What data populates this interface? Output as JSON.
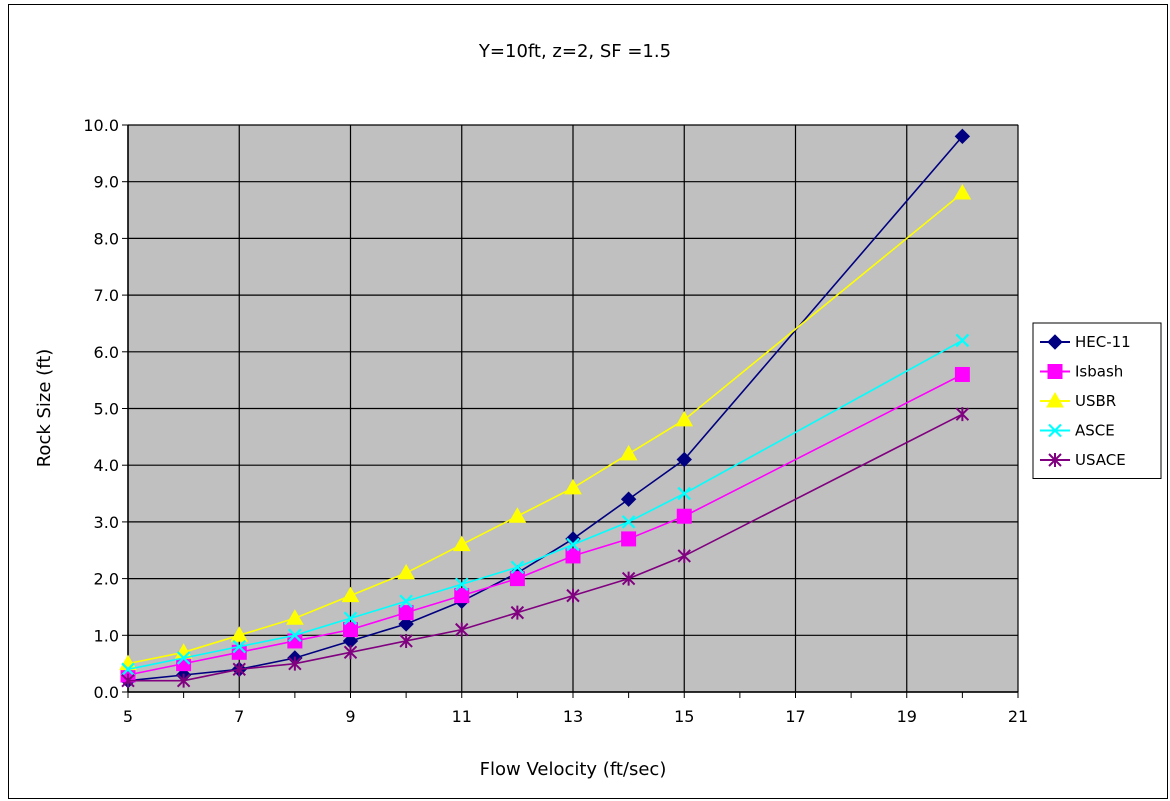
{
  "chart_data": {
    "type": "line",
    "title": "Y=10ft, z=2, SF =1.5",
    "xlabel": "Flow Velocity (ft/sec)",
    "ylabel": "Rock Size (ft)",
    "xlim": [
      5,
      21
    ],
    "ylim": [
      0,
      10
    ],
    "x_ticks": [
      "5",
      "7",
      "9",
      "11",
      "13",
      "15",
      "17",
      "19",
      "21"
    ],
    "y_ticks": [
      "0.0",
      "1.0",
      "2.0",
      "3.0",
      "4.0",
      "5.0",
      "6.0",
      "7.0",
      "8.0",
      "9.0",
      "10.0"
    ],
    "grid": true,
    "legend_position": "right",
    "plot_background": "#c0c0c0",
    "x": [
      5,
      6,
      7,
      8,
      9,
      10,
      11,
      12,
      13,
      14,
      15,
      20
    ],
    "series": [
      {
        "name": "HEC-11",
        "color": "#000080",
        "marker": "diamond",
        "values": [
          0.2,
          0.3,
          0.4,
          0.6,
          0.9,
          1.2,
          1.6,
          2.1,
          2.7,
          3.4,
          4.1,
          9.8
        ]
      },
      {
        "name": "Isbash",
        "color": "#ff00ff",
        "marker": "square",
        "values": [
          0.3,
          0.5,
          0.7,
          0.9,
          1.1,
          1.4,
          1.7,
          2.0,
          2.4,
          2.7,
          3.1,
          5.6
        ]
      },
      {
        "name": "USBR",
        "color": "#ffff00",
        "marker": "triangle",
        "values": [
          0.5,
          0.7,
          1.0,
          1.3,
          1.7,
          2.1,
          2.6,
          3.1,
          3.6,
          4.2,
          4.8,
          8.8
        ]
      },
      {
        "name": "ASCE",
        "color": "#00ffff",
        "marker": "x",
        "values": [
          0.4,
          0.6,
          0.8,
          1.0,
          1.3,
          1.6,
          1.9,
          2.2,
          2.6,
          3.0,
          3.5,
          6.2
        ]
      },
      {
        "name": "USACE",
        "color": "#800080",
        "marker": "star",
        "values": [
          0.2,
          0.2,
          0.4,
          0.5,
          0.7,
          0.9,
          1.1,
          1.4,
          1.7,
          2.0,
          2.4,
          4.9
        ]
      }
    ]
  }
}
